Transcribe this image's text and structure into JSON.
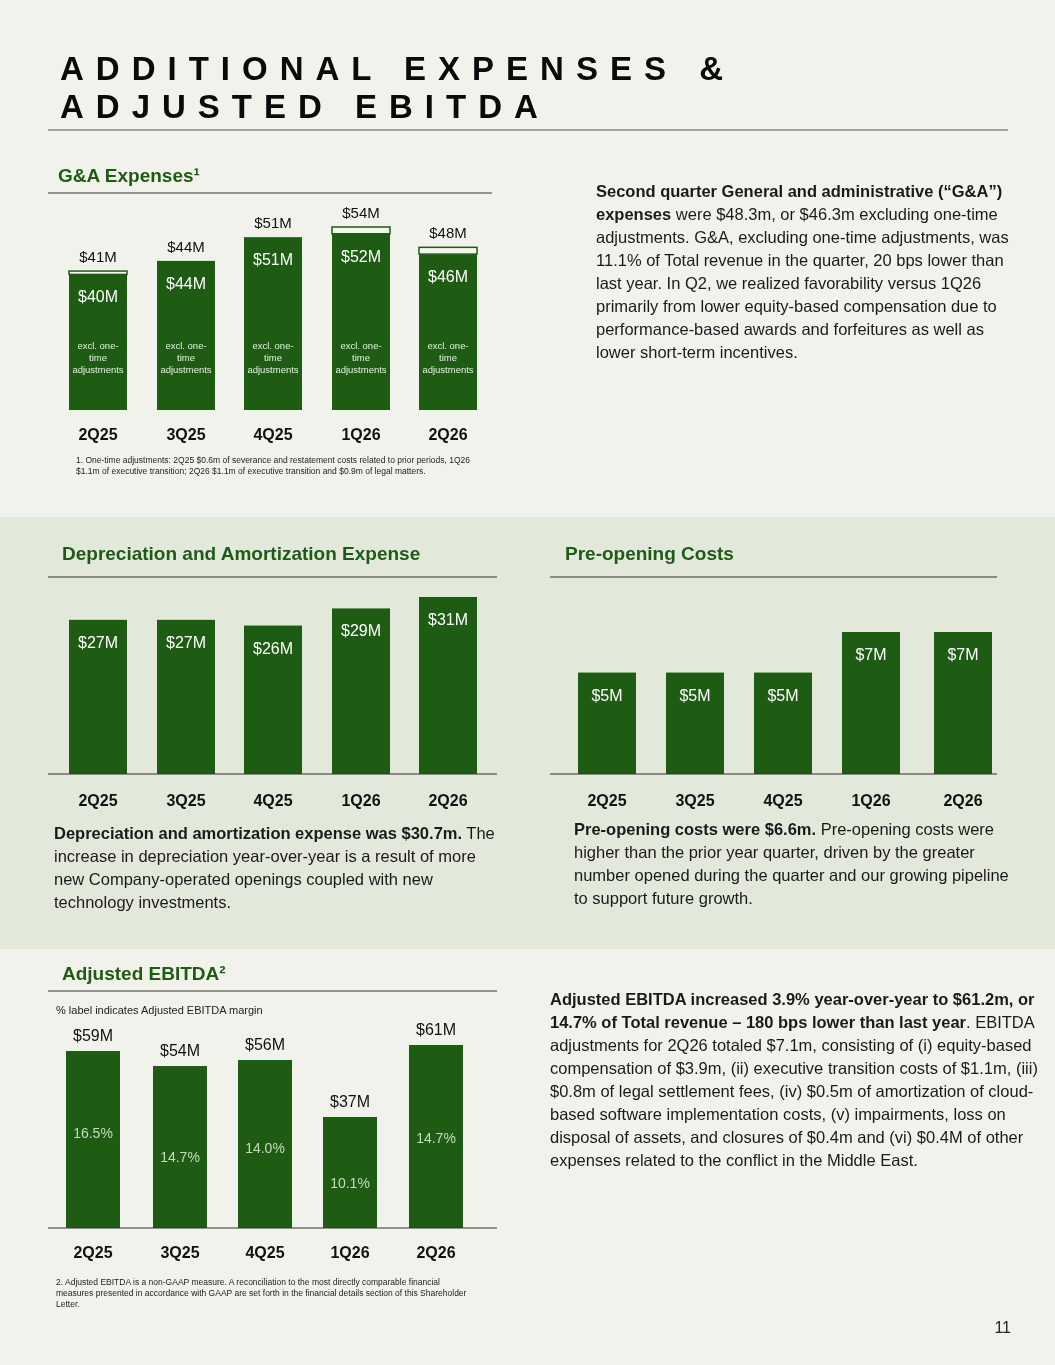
{
  "chart_data": [
    {
      "type": "other",
      "title": "ADDITIONAL EXPENSES & ADJUSTED EBITDA",
      "annotations": [
        "11"
      ]
    },
    {
      "type": "bar",
      "title": "G&A Expenses¹",
      "categories": [
        "2Q25",
        "3Q25",
        "4Q25",
        "1Q26",
        "2Q26"
      ],
      "stacked": true,
      "series": [
        {
          "name": "excl. one-time adjustments",
          "color": "#1e5c14",
          "values": [
            40,
            44,
            51,
            52,
            46
          ],
          "value_labels": [
            "$40M",
            "$44M",
            "$51M",
            "$52M",
            "$46M"
          ]
        },
        {
          "color": "#f4f5ee",
          "values": [
            1,
            0,
            0,
            2,
            2
          ]
        }
      ],
      "totals": [
        "$41M",
        "$44M",
        "$51M",
        "$54M",
        "$48M"
      ],
      "annotations": [
        "Second quarter General and administrative (“G&A”) expenses",
        " were $48.3m, or $46.3m excluding one-time adjustments. G&A, excluding one-time adjustments, was 11.1% of Total revenue in the quarter, 20 bps lower than last year. In Q2, we realized favorability versus 1Q26 primarily from lower equity-based compensation due to performance-based awards and forfeitures as well as lower short-term incentives.",
        "1. One-time adjustments: 2Q25 $0.6m of severance and restatement costs related to prior periods, 1Q26 $1.1m of executive transition; 2Q26 $1.1m of executive transition and $0.9m of legal matters."
      ]
    },
    {
      "type": "bar",
      "title": "Depreciation and Amortization Expense",
      "categories": [
        "2Q25",
        "3Q25",
        "4Q25",
        "1Q26",
        "2Q26"
      ],
      "color": "#1e5c14",
      "values": [
        27,
        27,
        26,
        29,
        31
      ],
      "value_labels": [
        "$27M",
        "$27M",
        "$26M",
        "$29M",
        "$31M"
      ],
      "annotations": [
        "Depreciation and amortization expense was $30.7m.",
        " The increase in depreciation year-over-year is a result of more new Company-operated openings coupled with new technology investments."
      ]
    },
    {
      "type": "bar",
      "title": "Pre-opening Costs",
      "categories": [
        "2Q25",
        "3Q25",
        "4Q25",
        "1Q26",
        "2Q26"
      ],
      "color": "#1e5c14",
      "values": [
        5,
        5,
        5,
        7,
        7
      ],
      "value_labels": [
        "$5M",
        "$5M",
        "$5M",
        "$7M",
        "$7M"
      ],
      "annotations": [
        "Pre-opening costs were $6.6m.",
        " Pre-opening costs were higher than the prior year quarter, driven by the greater number opened during the quarter and our growing pipeline to support future growth."
      ]
    },
    {
      "type": "bar",
      "title": "Adjusted EBITDA²",
      "categories": [
        "2Q25",
        "3Q25",
        "4Q25",
        "1Q26",
        "2Q26"
      ],
      "color": "#1e5c14",
      "values": [
        59,
        54,
        56,
        37,
        61
      ],
      "value_labels": [
        "$59M",
        "$54M",
        "$56M",
        "$37M",
        "$61M"
      ],
      "annotations": [
        "% label indicates Adjusted EBITDA margin",
        "16.5%",
        "14.7%",
        "14.0%",
        "10.1%",
        "14.7%",
        "Adjusted EBITDA increased 3.9% year-over-year to $61.2m, or 14.7% of Total revenue – 180 bps lower than last year",
        ". EBITDA adjustments for 2Q26 totaled $7.1m, consisting of (i) equity-based compensation of $3.9m, (ii) executive transition costs of $1.1m, (iii) $0.8m of legal settlement fees, (iv) $0.5m of amortization of cloud-based software implementation costs, (v) impairments, loss on disposal of assets, and closures of $0.4m and (vi) $0.4M of other expenses related to the conflict in the Middle East.",
        "2. Adjusted EBITDA is a non-GAAP measure. A reconciliation to the most directly comparable financial measures presented in accordance with GAAP are set forth in the financial details section of this Shareholder Letter."
      ]
    }
  ]
}
